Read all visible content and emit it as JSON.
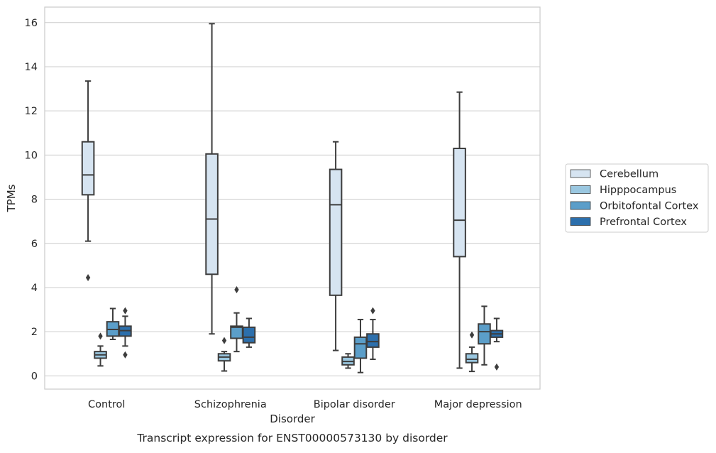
{
  "chart_data": {
    "type": "boxplot",
    "caption": "Transcript expression for ENST00000573130 by disorder",
    "xlabel": "Disorder",
    "ylabel": "TPMs",
    "ylim": [
      -0.6,
      16.7
    ],
    "yticks": [
      0,
      2,
      4,
      6,
      8,
      10,
      12,
      14,
      16
    ],
    "grid": "horizontal",
    "legend_position": "right",
    "categories": [
      "Control",
      "Schizophrenia",
      "Bipolar disorder",
      "Major depression"
    ],
    "series": [
      {
        "name": "Cerebellum",
        "color": "#d6e4f1",
        "boxes": [
          {
            "whislo": 6.1,
            "q1": 8.2,
            "med": 9.1,
            "q3": 10.6,
            "whishi": 13.35,
            "fliers": [
              4.45
            ]
          },
          {
            "whislo": 1.9,
            "q1": 4.6,
            "med": 7.1,
            "q3": 10.05,
            "whishi": 15.95,
            "fliers": []
          },
          {
            "whislo": 1.15,
            "q1": 3.65,
            "med": 7.75,
            "q3": 9.35,
            "whishi": 10.6,
            "fliers": []
          },
          {
            "whislo": 0.35,
            "q1": 5.4,
            "med": 7.05,
            "q3": 10.3,
            "whishi": 12.85,
            "fliers": []
          }
        ]
      },
      {
        "name": "Hipppocampus",
        "color": "#9ac7e0",
        "boxes": [
          {
            "whislo": 0.45,
            "q1": 0.8,
            "med": 0.95,
            "q3": 1.1,
            "whishi": 1.35,
            "fliers": [
              1.8
            ]
          },
          {
            "whislo": 0.22,
            "q1": 0.68,
            "med": 0.85,
            "q3": 1.0,
            "whishi": 1.1,
            "fliers": [
              1.6
            ]
          },
          {
            "whislo": 0.35,
            "q1": 0.5,
            "med": 0.65,
            "q3": 0.85,
            "whishi": 1.0,
            "fliers": []
          },
          {
            "whislo": 0.2,
            "q1": 0.6,
            "med": 0.75,
            "q3": 1.0,
            "whishi": 1.3,
            "fliers": [
              1.85
            ]
          }
        ]
      },
      {
        "name": "Orbitofontal Cortex",
        "color": "#5b9ec9",
        "boxes": [
          {
            "whislo": 1.65,
            "q1": 1.8,
            "med": 2.1,
            "q3": 2.45,
            "whishi": 3.05,
            "fliers": []
          },
          {
            "whislo": 1.1,
            "q1": 1.7,
            "med": 2.2,
            "q3": 2.25,
            "whishi": 2.85,
            "fliers": [
              3.9
            ]
          },
          {
            "whislo": 0.15,
            "q1": 0.8,
            "med": 1.45,
            "q3": 1.75,
            "whishi": 2.55,
            "fliers": []
          },
          {
            "whislo": 0.5,
            "q1": 1.45,
            "med": 2.0,
            "q3": 2.35,
            "whishi": 3.15,
            "fliers": []
          }
        ]
      },
      {
        "name": "Prefrontal Cortex",
        "color": "#2c6fac",
        "boxes": [
          {
            "whislo": 1.35,
            "q1": 1.8,
            "med": 2.05,
            "q3": 2.25,
            "whishi": 2.7,
            "fliers": [
              2.95,
              0.95
            ]
          },
          {
            "whislo": 1.3,
            "q1": 1.5,
            "med": 1.75,
            "q3": 2.2,
            "whishi": 2.6,
            "fliers": []
          },
          {
            "whislo": 0.75,
            "q1": 1.3,
            "med": 1.55,
            "q3": 1.9,
            "whishi": 2.55,
            "fliers": [
              2.95
            ]
          },
          {
            "whislo": 1.55,
            "q1": 1.75,
            "med": 1.9,
            "q3": 2.05,
            "whishi": 2.6,
            "fliers": [
              0.4
            ]
          }
        ]
      }
    ]
  }
}
